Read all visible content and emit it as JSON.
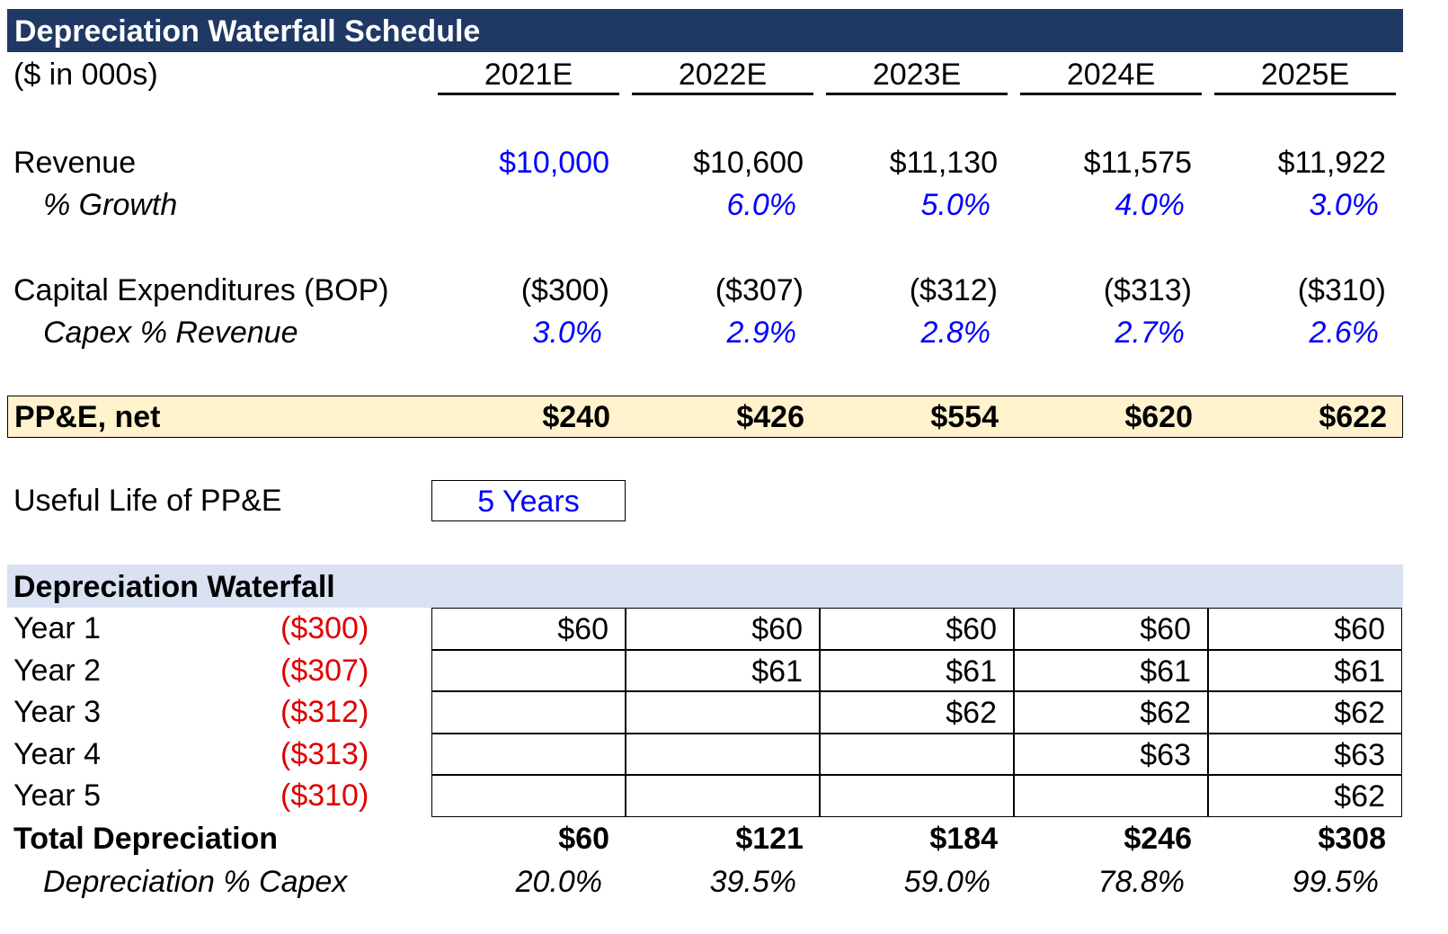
{
  "title": "Depreciation Waterfall Schedule",
  "units": "($ in 000s)",
  "years": [
    "2021E",
    "2022E",
    "2023E",
    "2024E",
    "2025E"
  ],
  "revenue": {
    "label": "Revenue",
    "values": [
      "$10,000",
      "$10,600",
      "$11,130",
      "$11,575",
      "$11,922"
    ]
  },
  "growth": {
    "label": "% Growth",
    "values": [
      "",
      "6.0%",
      "5.0%",
      "4.0%",
      "3.0%"
    ]
  },
  "capex": {
    "label": "Capital Expenditures (BOP)",
    "values": [
      "($300)",
      "($307)",
      "($312)",
      "($313)",
      "($310)"
    ]
  },
  "capex_pct": {
    "label": "Capex % Revenue",
    "values": [
      "3.0%",
      "2.9%",
      "2.8%",
      "2.7%",
      "2.6%"
    ]
  },
  "ppe": {
    "label": "PP&E, net",
    "values": [
      "$240",
      "$426",
      "$554",
      "$620",
      "$622"
    ]
  },
  "useful_life": {
    "label": "Useful Life of PP&E",
    "value": "5 Years"
  },
  "waterfall": {
    "header": "Depreciation Waterfall",
    "rows": [
      {
        "label": "Year 1",
        "capex": "($300)",
        "values": [
          "$60",
          "$60",
          "$60",
          "$60",
          "$60"
        ]
      },
      {
        "label": "Year 2",
        "capex": "($307)",
        "values": [
          "",
          "$61",
          "$61",
          "$61",
          "$61"
        ]
      },
      {
        "label": "Year 3",
        "capex": "($312)",
        "values": [
          "",
          "",
          "$62",
          "$62",
          "$62"
        ]
      },
      {
        "label": "Year 4",
        "capex": "($313)",
        "values": [
          "",
          "",
          "",
          "$63",
          "$63"
        ]
      },
      {
        "label": "Year 5",
        "capex": "($310)",
        "values": [
          "",
          "",
          "",
          "",
          "$62"
        ]
      }
    ]
  },
  "total": {
    "label": "Total Depreciation",
    "values": [
      "$60",
      "$121",
      "$184",
      "$246",
      "$308"
    ]
  },
  "dep_pct": {
    "label": "Depreciation % Capex",
    "values": [
      "20.0%",
      "39.5%",
      "59.0%",
      "78.8%",
      "99.5%"
    ]
  },
  "colors": {
    "header_bg": "#1f3864",
    "ppe_bg": "#fff2cc",
    "waterfall_bg": "#d9e1f2",
    "input": "#0000ff",
    "negative": "#e00000"
  }
}
